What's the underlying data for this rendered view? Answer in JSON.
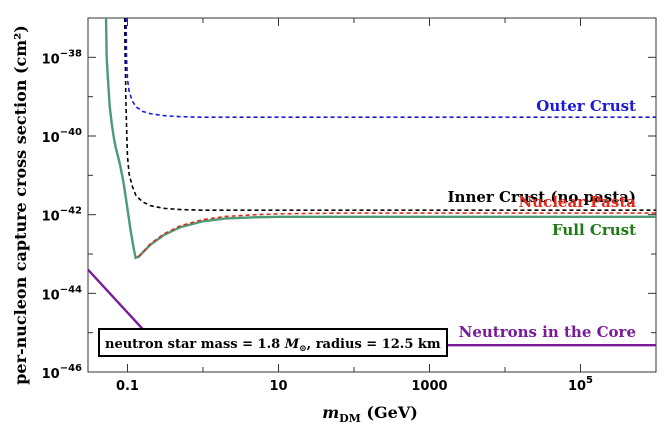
{
  "chart_data": {
    "type": "line",
    "xlabel_main": "m",
    "xlabel_sub": "DM",
    "xlabel_unit": " (GeV)",
    "ylabel": "per-nucleon capture cross section (cm²)",
    "xscale": "log",
    "yscale": "log",
    "xlim": [
      0.03,
      1000000
    ],
    "ylim": [
      1e-46,
      1e-37
    ],
    "x_ticks": [
      {
        "value": 0.1,
        "label": "0.1"
      },
      {
        "value": 10,
        "label": "10"
      },
      {
        "value": 1000,
        "label": "1000"
      },
      {
        "value": 100000,
        "label": "10",
        "sup": "5"
      }
    ],
    "y_ticks": [
      {
        "value": 1e-38,
        "label": "10",
        "sup": "−38"
      },
      {
        "value": 1e-40,
        "label": "10",
        "sup": "−40"
      },
      {
        "value": 1e-42,
        "label": "10",
        "sup": "−42"
      },
      {
        "value": 1e-44,
        "label": "10",
        "sup": "−44"
      },
      {
        "value": 1e-46,
        "label": "10",
        "sup": "−46"
      }
    ],
    "series": [
      {
        "name": "Outer Crust",
        "color": "#1a1adc",
        "style": "dashed",
        "x": [
          0.096,
          0.097,
          0.1,
          0.105,
          0.115,
          0.13,
          0.16,
          0.2,
          0.3,
          0.5,
          1,
          10,
          1000000
        ],
        "y": [
          1e-37,
          1e-38,
          2.8e-39,
          1.4e-39,
          8e-40,
          5.5e-40,
          4.2e-40,
          3.7e-40,
          3.3e-40,
          3.1e-40,
          3e-40,
          3e-40,
          3e-40
        ]
      },
      {
        "name": "Inner Crust (no pasta)",
        "color": "#000000",
        "style": "dashed",
        "x": [
          0.092,
          0.093,
          0.094,
          0.095,
          0.097,
          0.1,
          0.105,
          0.115,
          0.13,
          0.16,
          0.2,
          0.3,
          0.5,
          1,
          10,
          1000000
        ],
        "y": [
          1e-37,
          1e-38,
          5e-39,
          1e-39,
          2e-40,
          3e-41,
          1.1e-41,
          5.5e-42,
          3e-42,
          2.1e-42,
          1.7e-42,
          1.45e-42,
          1.35e-42,
          1.3e-42,
          1.3e-42,
          1.3e-42
        ]
      },
      {
        "name": "Nuclear Pasta",
        "color": "#e02a1b",
        "style": "dashed",
        "x": [
          0.14,
          0.2,
          0.3,
          0.5,
          1,
          2,
          5,
          10,
          30,
          100,
          1000,
          1000000
        ],
        "y": [
          8.5e-44,
          1.8e-43,
          3.2e-43,
          5.2e-43,
          7.5e-43,
          9e-43,
          1e-42,
          1.05e-42,
          1.08e-42,
          1.1e-42,
          1.1e-42,
          1.1e-42
        ]
      },
      {
        "name": "Full Crust",
        "color": "#4d9a76",
        "style": "solid",
        "x": [
          0.052,
          0.053,
          0.055,
          0.058,
          0.062,
          0.066,
          0.07,
          0.075,
          0.08,
          0.085,
          0.09,
          0.1,
          0.11,
          0.12,
          0.128,
          0.14,
          0.2,
          0.3,
          0.5,
          1,
          2,
          5,
          10,
          30,
          100,
          1000,
          1000000
        ],
        "y": [
          1e-37,
          1e-38,
          3e-39,
          6e-40,
          2e-40,
          9e-41,
          5e-41,
          3e-41,
          1.8e-41,
          1e-41,
          5.5e-42,
          1.4e-42,
          4e-43,
          1.5e-43,
          8e-44,
          8.5e-44,
          1.7e-43,
          3e-43,
          4.8e-43,
          6.8e-43,
          8e-43,
          8.6e-43,
          8.8e-43,
          8.8e-43,
          8.8e-43,
          8.8e-43,
          8.8e-43
        ]
      },
      {
        "name": "Neutrons in the Core",
        "color": "#7a1a9a",
        "style": "solid",
        "x": [
          0.03,
          0.25,
          1000000
        ],
        "y": [
          4e-44,
          4.8e-46,
          4.8e-46
        ]
      }
    ],
    "annotations": [
      {
        "text": "Outer Crust",
        "color": "#1a1adc"
      },
      {
        "text": "Inner Crust (no pasta)",
        "color": "#000000"
      },
      {
        "text": "Nuclear Pasta",
        "color": "#e02a1b"
      },
      {
        "text": "Full Crust",
        "color": "#1e7a14"
      },
      {
        "text": "Neutrons in the Core",
        "color": "#7a1a9a"
      }
    ],
    "info_box": {
      "prefix": "neutron star mass = 1.8 ",
      "mass_symbol": "M",
      "mass_sub": "⊙",
      "suffix": ",  radius = 12.5  km"
    }
  }
}
